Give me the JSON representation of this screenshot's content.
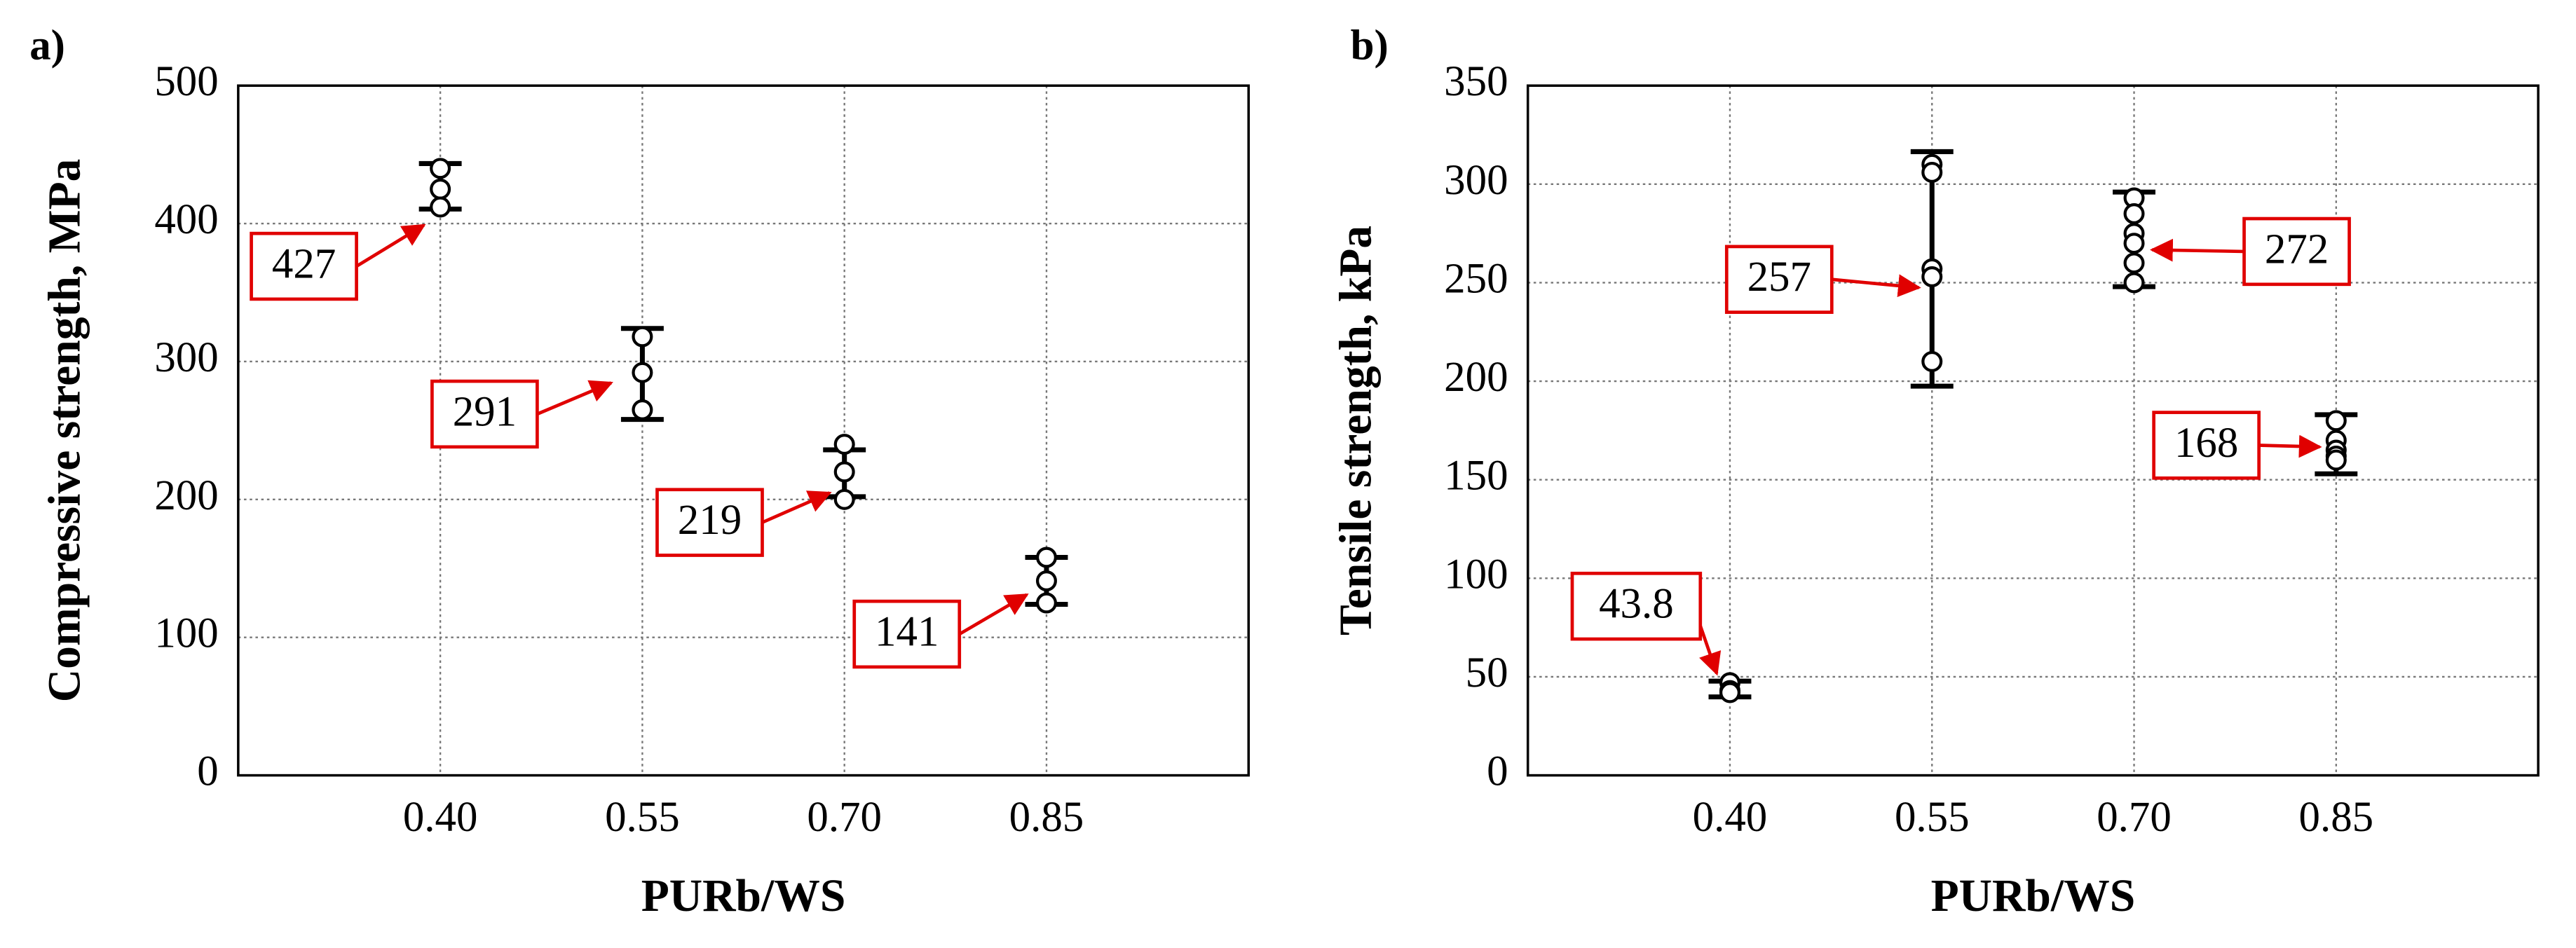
{
  "chart_data": [
    {
      "type": "scatter",
      "panel_label": "a)",
      "xlabel": "PURb/WS",
      "ylabel": "Compressive strength, MPa",
      "x": [
        0.4,
        0.55,
        0.7,
        0.85
      ],
      "xlim": [
        0.25,
        1.0
      ],
      "xticks": [
        {
          "value": 0.4,
          "label": "0.40"
        },
        {
          "value": 0.55,
          "label": "0.55"
        },
        {
          "value": 0.7,
          "label": "0.70"
        },
        {
          "value": 0.85,
          "label": "0.85"
        }
      ],
      "ylim": [
        0,
        500
      ],
      "yticks": [
        0,
        100,
        200,
        300,
        400,
        500
      ],
      "grid": true,
      "samples": [
        [
          440,
          425,
          412
        ],
        [
          318,
          292,
          265
        ],
        [
          240,
          220,
          200
        ],
        [
          158,
          141,
          125
        ]
      ],
      "values": [
        427,
        291,
        219,
        141
      ],
      "errors": [
        16.5,
        33,
        17,
        17
      ],
      "color": "#000000",
      "annotation_color": "#e00000"
    },
    {
      "type": "scatter",
      "panel_label": "b)",
      "xlabel": "PURb/WS",
      "ylabel": "Tensile strength, kPa",
      "x": [
        0.4,
        0.55,
        0.7,
        0.85
      ],
      "xlim": [
        0.25,
        1.0
      ],
      "xticks": [
        {
          "value": 0.4,
          "label": "0.40"
        },
        {
          "value": 0.55,
          "label": "0.55"
        },
        {
          "value": 0.7,
          "label": "0.70"
        },
        {
          "value": 0.85,
          "label": "0.85"
        }
      ],
      "ylim": [
        0,
        350
      ],
      "yticks": [
        0,
        50,
        100,
        150,
        200,
        250,
        300,
        350
      ],
      "grid": true,
      "samples": [
        [
          47,
          43,
          42
        ],
        [
          310,
          306,
          257,
          253,
          210
        ],
        [
          293,
          285,
          275,
          270,
          260,
          250
        ],
        [
          180,
          170,
          165,
          162,
          160
        ]
      ],
      "values": [
        43.8,
        257,
        272,
        168
      ],
      "errors": [
        4,
        59.5,
        24,
        15
      ],
      "color": "#000000",
      "annotation_color": "#e00000"
    }
  ]
}
